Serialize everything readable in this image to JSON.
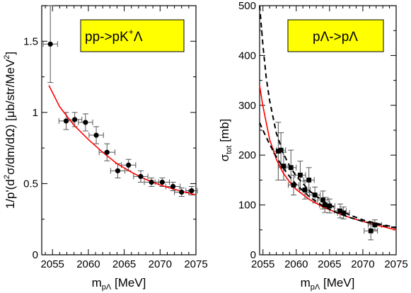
{
  "chart_data": [
    {
      "type": "scatter",
      "legend_label": "pp->pK",
      "legend_sup": "+",
      "legend_suffix": "Λ",
      "ylabel_main": "1/p'(d",
      "ylabel_sup": "2",
      "ylabel_tail": "σ/dm/dΩ)  [μb/str/MeV",
      "ylabel_end": "]",
      "xlabel_main": "m",
      "xlabel_sub": "pΛ",
      "xlabel_unit": " [MeV]",
      "xlim": [
        2053.5,
        2075
      ],
      "ylim": [
        0,
        1.75
      ],
      "x_ticks": [
        "2055",
        "2060",
        "2065",
        "2070",
        "2075"
      ],
      "y_ticks": [
        "0",
        "0.5",
        "1",
        "1.5"
      ],
      "marker": "circle",
      "points": [
        {
          "x": 2054.7,
          "y": 1.48,
          "xerr": 1.0,
          "yerr": 0.27
        },
        {
          "x": 2056.9,
          "y": 0.94,
          "xerr": 1.0,
          "yerr": 0.06
        },
        {
          "x": 2058.1,
          "y": 0.95,
          "xerr": 1.0,
          "yerr": 0.05
        },
        {
          "x": 2059.6,
          "y": 0.93,
          "xerr": 1.0,
          "yerr": 0.06
        },
        {
          "x": 2061.1,
          "y": 0.84,
          "xerr": 1.0,
          "yerr": 0.06
        },
        {
          "x": 2062.6,
          "y": 0.72,
          "xerr": 1.1,
          "yerr": 0.06
        },
        {
          "x": 2064.1,
          "y": 0.59,
          "xerr": 1.0,
          "yerr": 0.05
        },
        {
          "x": 2065.6,
          "y": 0.63,
          "xerr": 1.0,
          "yerr": 0.04
        },
        {
          "x": 2067.3,
          "y": 0.55,
          "xerr": 1.0,
          "yerr": 0.04
        },
        {
          "x": 2068.8,
          "y": 0.51,
          "xerr": 1.0,
          "yerr": 0.03
        },
        {
          "x": 2070.3,
          "y": 0.51,
          "xerr": 1.0,
          "yerr": 0.03
        },
        {
          "x": 2071.8,
          "y": 0.48,
          "xerr": 1.0,
          "yerr": 0.03
        },
        {
          "x": 2073.0,
          "y": 0.44,
          "xerr": 1.0,
          "yerr": 0.03
        },
        {
          "x": 2074.4,
          "y": 0.45,
          "xerr": 0.8,
          "yerr": 0.03
        }
      ],
      "curves": [
        {
          "style": "red-solid",
          "color": "#ff0000",
          "x": [
            2054.5,
            2056,
            2058,
            2060,
            2062,
            2064,
            2066,
            2068,
            2070,
            2072,
            2075
          ],
          "y": [
            1.19,
            1.04,
            0.91,
            0.81,
            0.72,
            0.64,
            0.58,
            0.53,
            0.49,
            0.46,
            0.42
          ]
        }
      ]
    },
    {
      "type": "scatter",
      "legend_label": "pΛ->pΛ",
      "ylabel_main": "σ",
      "ylabel_sub": "tot",
      "ylabel_unit": " [mb]",
      "xlabel_main": "m",
      "xlabel_sub": "pΛ",
      "xlabel_unit": " [MeV]",
      "xlim": [
        2054.5,
        2075
      ],
      "ylim": [
        0,
        500
      ],
      "x_ticks": [
        "2055",
        "2060",
        "2065",
        "2070",
        "2075"
      ],
      "y_ticks": [
        "0",
        "100",
        "200",
        "300",
        "400",
        "500"
      ],
      "marker": "square",
      "points": [
        {
          "x": 2057.3,
          "y": 208,
          "xerr": 0.7,
          "yerr": 58
        },
        {
          "x": 2057.7,
          "y": 210,
          "xerr": 0.7,
          "yerr": 35
        },
        {
          "x": 2058.1,
          "y": 178,
          "xerr": 0.8,
          "yerr": 28
        },
        {
          "x": 2059.2,
          "y": 175,
          "xerr": 0.8,
          "yerr": 35
        },
        {
          "x": 2059.6,
          "y": 140,
          "xerr": 0.8,
          "yerr": 20
        },
        {
          "x": 2060.6,
          "y": 160,
          "xerr": 0.8,
          "yerr": 28
        },
        {
          "x": 2061.3,
          "y": 130,
          "xerr": 0.8,
          "yerr": 18
        },
        {
          "x": 2061.9,
          "y": 150,
          "xerr": 0.8,
          "yerr": 25
        },
        {
          "x": 2062.8,
          "y": 120,
          "xerr": 0.8,
          "yerr": 16
        },
        {
          "x": 2064.0,
          "y": 110,
          "xerr": 0.8,
          "yerr": 18
        },
        {
          "x": 2064.3,
          "y": 100,
          "xerr": 0.8,
          "yerr": 15
        },
        {
          "x": 2065.0,
          "y": 98,
          "xerr": 0.8,
          "yerr": 14
        },
        {
          "x": 2066.6,
          "y": 88,
          "xerr": 0.9,
          "yerr": 14
        },
        {
          "x": 2067.1,
          "y": 84,
          "xerr": 0.9,
          "yerr": 12
        },
        {
          "x": 2071.2,
          "y": 48,
          "xerr": 1.0,
          "yerr": 18
        },
        {
          "x": 2071.8,
          "y": 60,
          "xerr": 1.0,
          "yerr": 10
        }
      ],
      "curves": [
        {
          "style": "red-solid",
          "color": "#ff0000",
          "x": [
            2054.5,
            2055,
            2056,
            2057,
            2058,
            2059,
            2060,
            2062,
            2064,
            2066,
            2068,
            2070,
            2072,
            2075
          ],
          "y": [
            340,
            298,
            232,
            192,
            165,
            146,
            131,
            111,
            96,
            85,
            75,
            67,
            60,
            50
          ]
        },
        {
          "style": "black-dashed",
          "color": "#000000",
          "x": [
            2054.5,
            2055,
            2055.5,
            2056,
            2057,
            2058,
            2059,
            2060,
            2062,
            2064,
            2066,
            2068,
            2070,
            2072,
            2075
          ],
          "y": [
            500,
            420,
            355,
            310,
            245,
            205,
            178,
            158,
            128,
            108,
            93,
            80,
            70,
            63,
            55
          ]
        },
        {
          "style": "black-dashed",
          "color": "#000000",
          "x": [
            2054.5,
            2055,
            2056,
            2057,
            2058,
            2059,
            2060,
            2062,
            2064,
            2066,
            2068,
            2070,
            2072,
            2075
          ],
          "y": [
            265,
            250,
            222,
            197,
            175,
            157,
            141,
            116,
            98,
            85,
            75,
            67,
            61,
            54
          ]
        }
      ]
    }
  ]
}
